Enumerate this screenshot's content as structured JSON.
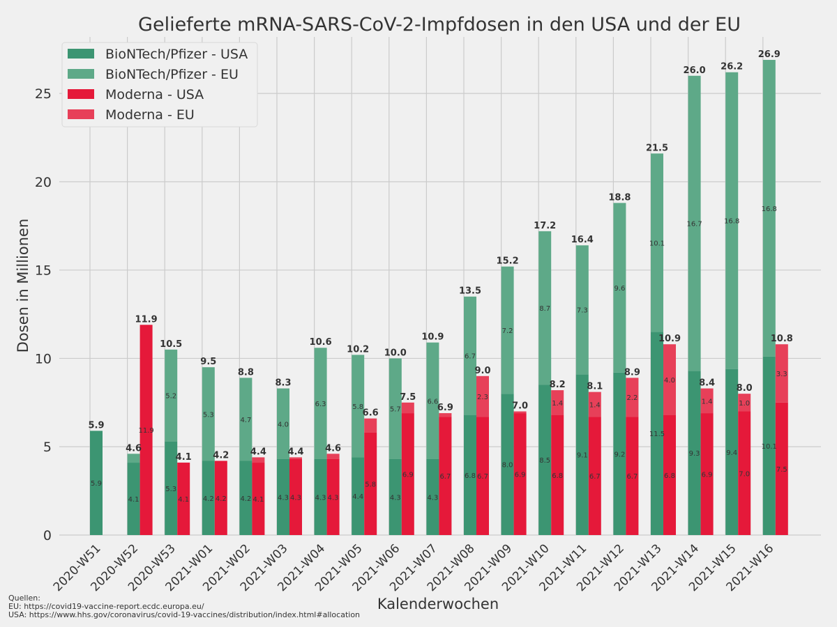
{
  "chart_data": {
    "type": "bar",
    "stacked": true,
    "title": "Gelieferte mRNA-SARS-CoV-2-Impfdosen in den USA und der EU",
    "xlabel": "Kalenderwochen",
    "ylabel": "Dosen in Millionen",
    "ylim": [
      0,
      28.2
    ],
    "yticks": [
      0,
      5,
      10,
      15,
      20,
      25
    ],
    "grid": true,
    "legend_position": "top-left",
    "categories": [
      "2020-W51",
      "2020-W52",
      "2020-W53",
      "2021-W01",
      "2021-W02",
      "2021-W03",
      "2021-W04",
      "2021-W05",
      "2021-W06",
      "2021-W07",
      "2021-W08",
      "2021-W09",
      "2021-W10",
      "2021-W11",
      "2021-W12",
      "2021-W13",
      "2021-W14",
      "2021-W15",
      "2021-W16"
    ],
    "series": [
      {
        "name": "BioNTech/Pfizer - USA",
        "stack": "pfizer",
        "color": "#3c9572",
        "values": [
          5.9,
          4.1,
          5.3,
          4.2,
          4.2,
          4.3,
          4.3,
          4.4,
          4.3,
          4.3,
          6.8,
          8.0,
          8.5,
          9.1,
          9.2,
          11.5,
          9.3,
          9.4,
          10.1
        ]
      },
      {
        "name": "BioNTech/Pfizer - EU",
        "stack": "pfizer",
        "color": "#5ea988",
        "values": [
          0,
          0.5,
          5.2,
          5.3,
          4.7,
          4.0,
          6.3,
          5.8,
          5.7,
          6.6,
          6.7,
          7.2,
          8.7,
          7.3,
          9.6,
          10.1,
          16.7,
          16.8,
          16.8
        ]
      },
      {
        "name": "Moderna - USA",
        "stack": "moderna",
        "color": "#e5193a",
        "values": [
          0,
          11.9,
          4.1,
          4.2,
          4.1,
          4.3,
          4.3,
          5.8,
          6.9,
          6.7,
          6.7,
          6.9,
          6.8,
          6.7,
          6.7,
          6.8,
          6.9,
          7.0,
          7.5
        ]
      },
      {
        "name": "Moderna - EU",
        "stack": "moderna",
        "color": "#e74059",
        "values": [
          0,
          0,
          0,
          0,
          0.3,
          0.1,
          0.3,
          0.8,
          0.6,
          0.2,
          2.3,
          0.1,
          1.4,
          1.4,
          2.2,
          4.0,
          1.4,
          1.0,
          3.3
        ]
      }
    ],
    "totals": {
      "pfizer": [
        "5.9",
        "4.6",
        "10.5",
        "9.5",
        "8.8",
        "8.3",
        "10.6",
        "10.2",
        "10.0",
        "10.9",
        "13.5",
        "15.2",
        "17.2",
        "16.4",
        "18.8",
        "21.5",
        "26.0",
        "26.2",
        "26.9"
      ],
      "moderna": [
        "",
        "11.9",
        "4.1",
        "4.2",
        "4.4",
        "4.4",
        "4.6",
        "6.6",
        "7.5",
        "6.9",
        "9.0",
        "7.0",
        "8.2",
        "8.1",
        "8.9",
        "10.9",
        "8.4",
        "8.0",
        "10.8"
      ]
    }
  },
  "sources": "Quellen:\nEU: https://covid19-vaccine-report.ecdc.europa.eu/\nUSA: https://www.hhs.gov/coronavirus/covid-19-vaccines/distribution/index.html#allocation"
}
